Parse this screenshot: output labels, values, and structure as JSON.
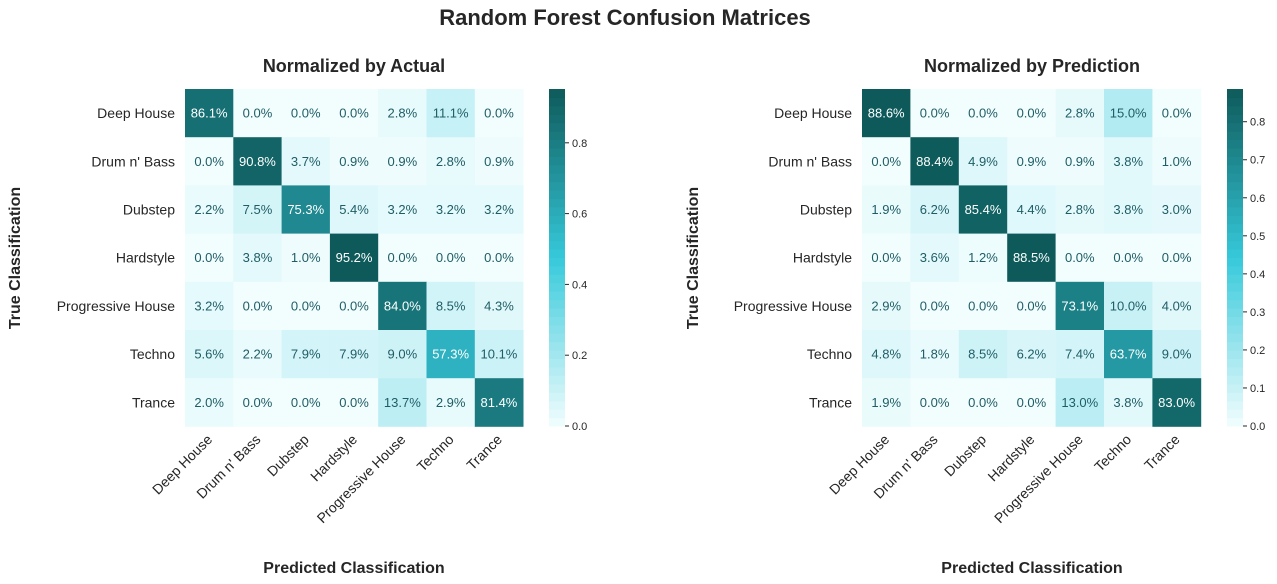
{
  "title": "Random Forest Confusion Matrices",
  "colors": {
    "low": "#f2fdfe",
    "mid": "#36c9db",
    "high": "#0e5a5a",
    "text_dark": "#1f5d66",
    "text_light": "#ffffff"
  },
  "chart_data": [
    {
      "type": "heatmap",
      "title": "Normalized by Actual",
      "xlabel": "Predicted Classification",
      "ylabel": "True Classification",
      "categories": [
        "Deep House",
        "Drum n' Bass",
        "Dubstep",
        "Hardstyle",
        "Progressive House",
        "Techno",
        "Trance"
      ],
      "values": [
        [
          0.861,
          0.0,
          0.0,
          0.0,
          0.028,
          0.111,
          0.0
        ],
        [
          0.0,
          0.908,
          0.037,
          0.009,
          0.009,
          0.028,
          0.009
        ],
        [
          0.022,
          0.075,
          0.753,
          0.054,
          0.032,
          0.032,
          0.032
        ],
        [
          0.0,
          0.038,
          0.01,
          0.952,
          0.0,
          0.0,
          0.0
        ],
        [
          0.032,
          0.0,
          0.0,
          0.0,
          0.84,
          0.085,
          0.043
        ],
        [
          0.056,
          0.022,
          0.079,
          0.079,
          0.09,
          0.573,
          0.101
        ],
        [
          0.02,
          0.0,
          0.0,
          0.0,
          0.137,
          0.029,
          0.814
        ]
      ],
      "labels": [
        [
          "86.1%",
          "0.0%",
          "0.0%",
          "0.0%",
          "2.8%",
          "11.1%",
          "0.0%"
        ],
        [
          "0.0%",
          "90.8%",
          "3.7%",
          "0.9%",
          "0.9%",
          "2.8%",
          "0.9%"
        ],
        [
          "2.2%",
          "7.5%",
          "75.3%",
          "5.4%",
          "3.2%",
          "3.2%",
          "3.2%"
        ],
        [
          "0.0%",
          "3.8%",
          "1.0%",
          "95.2%",
          "0.0%",
          "0.0%",
          "0.0%"
        ],
        [
          "3.2%",
          "0.0%",
          "0.0%",
          "0.0%",
          "84.0%",
          "8.5%",
          "4.3%"
        ],
        [
          "5.6%",
          "2.2%",
          "7.9%",
          "7.9%",
          "9.0%",
          "57.3%",
          "10.1%"
        ],
        [
          "2.0%",
          "0.0%",
          "0.0%",
          "0.0%",
          "13.7%",
          "2.9%",
          "81.4%"
        ]
      ],
      "colorbar": {
        "range": [
          0,
          0.952
        ],
        "ticks": [
          0.0,
          0.2,
          0.4,
          0.6,
          0.8
        ],
        "tick_labels": [
          "0.0",
          "0.2",
          "0.4",
          "0.6",
          "0.8"
        ]
      }
    },
    {
      "type": "heatmap",
      "title": "Normalized by Prediction",
      "xlabel": "Predicted Classification",
      "ylabel": "True Classification",
      "categories": [
        "Deep House",
        "Drum n' Bass",
        "Dubstep",
        "Hardstyle",
        "Progressive House",
        "Techno",
        "Trance"
      ],
      "values": [
        [
          0.886,
          0.0,
          0.0,
          0.0,
          0.028,
          0.15,
          0.0
        ],
        [
          0.0,
          0.884,
          0.049,
          0.009,
          0.009,
          0.038,
          0.01
        ],
        [
          0.019,
          0.062,
          0.854,
          0.044,
          0.028,
          0.038,
          0.03
        ],
        [
          0.0,
          0.036,
          0.012,
          0.885,
          0.0,
          0.0,
          0.0
        ],
        [
          0.029,
          0.0,
          0.0,
          0.0,
          0.731,
          0.1,
          0.04
        ],
        [
          0.048,
          0.018,
          0.085,
          0.062,
          0.074,
          0.637,
          0.09
        ],
        [
          0.019,
          0.0,
          0.0,
          0.0,
          0.13,
          0.038,
          0.83
        ]
      ],
      "labels": [
        [
          "88.6%",
          "0.0%",
          "0.0%",
          "0.0%",
          "2.8%",
          "15.0%",
          "0.0%"
        ],
        [
          "0.0%",
          "88.4%",
          "4.9%",
          "0.9%",
          "0.9%",
          "3.8%",
          "1.0%"
        ],
        [
          "1.9%",
          "6.2%",
          "85.4%",
          "4.4%",
          "2.8%",
          "3.8%",
          "3.0%"
        ],
        [
          "0.0%",
          "3.6%",
          "1.2%",
          "88.5%",
          "0.0%",
          "0.0%",
          "0.0%"
        ],
        [
          "2.9%",
          "0.0%",
          "0.0%",
          "0.0%",
          "73.1%",
          "10.0%",
          "4.0%"
        ],
        [
          "4.8%",
          "1.8%",
          "8.5%",
          "6.2%",
          "7.4%",
          "63.7%",
          "9.0%"
        ],
        [
          "1.9%",
          "0.0%",
          "0.0%",
          "0.0%",
          "13.0%",
          "3.8%",
          "83.0%"
        ]
      ],
      "colorbar": {
        "range": [
          0,
          0.886
        ],
        "ticks": [
          0.0,
          0.1,
          0.2,
          0.3,
          0.4,
          0.5,
          0.6,
          0.7,
          0.8
        ],
        "tick_labels": [
          "0.0",
          "0.1",
          "0.2",
          "0.3",
          "0.4",
          "0.5",
          "0.6",
          "0.7",
          "0.8"
        ]
      }
    }
  ]
}
